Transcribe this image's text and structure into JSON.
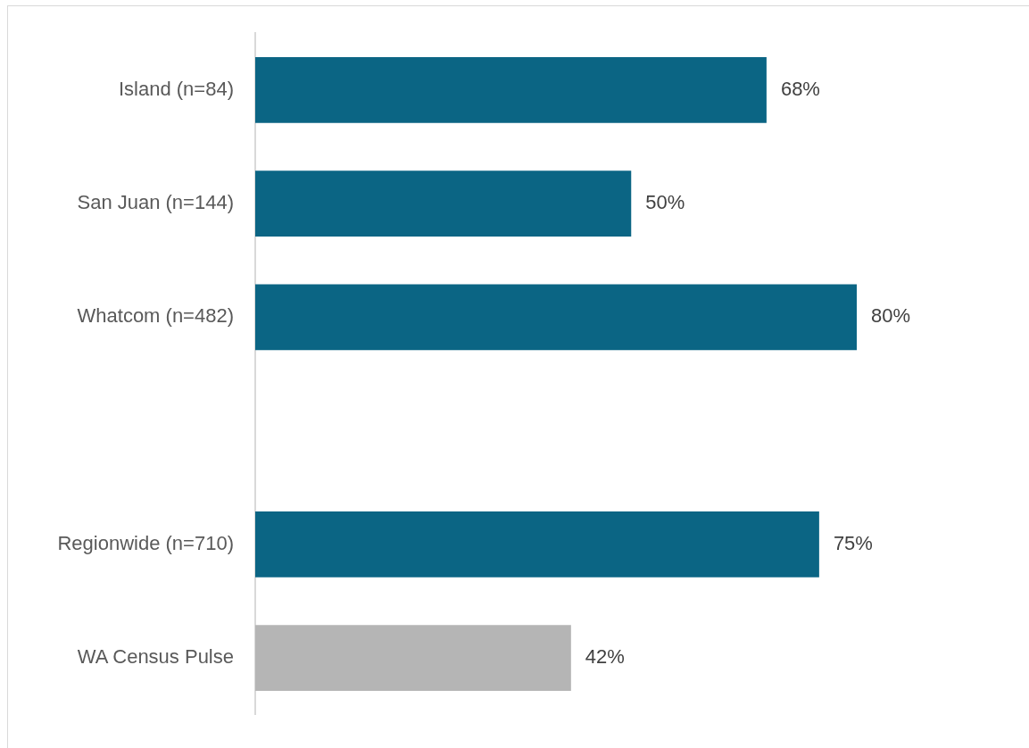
{
  "chart_data": {
    "type": "bar",
    "orientation": "horizontal",
    "categories": [
      "Island (n=84)",
      "San Juan (n=144)",
      "Whatcom (n=482)",
      null,
      "Regionwide (n=710)",
      "WA Census Pulse"
    ],
    "values": [
      68,
      50,
      80,
      null,
      75,
      42
    ],
    "colors": [
      "#0b6584",
      "#0b6584",
      "#0b6584",
      "#0b6584",
      "#0b6584",
      "#b5b5b5"
    ],
    "value_labels": [
      "68%",
      "50%",
      "80%",
      null,
      "75%",
      "42%"
    ],
    "grid": false,
    "legend": false
  }
}
